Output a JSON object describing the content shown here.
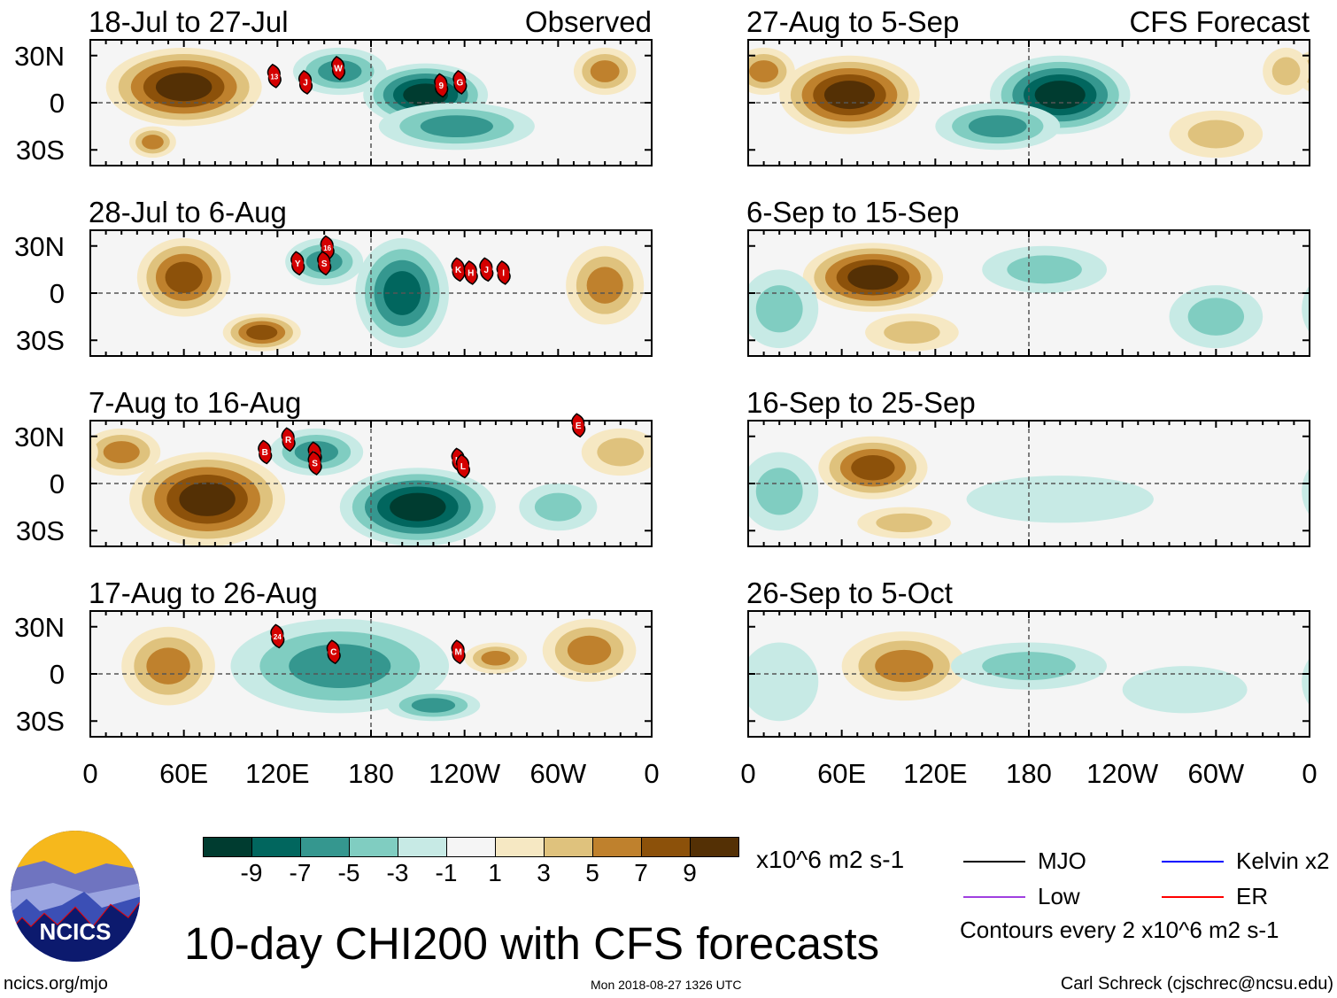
{
  "title": "10-day CHI200 with CFS forecasts",
  "source_url": "ncics.org/mjo",
  "timestamp": "Mon 2018-08-27 1326 UTC",
  "author": "Carl Schreck (cjschrec@ncsu.edu)",
  "logo_text": "NCICS",
  "units": "x10^6 m2 s-1",
  "contour_note": "Contours every 2 x10^6 m2 s-1",
  "column_labels": {
    "observed": "Observed",
    "forecast": "CFS Forecast"
  },
  "lat_labels": [
    "30N",
    "0",
    "30S"
  ],
  "lon_labels": [
    {
      "lon": 0,
      "label": "0"
    },
    {
      "lon": 60,
      "label": "60E"
    },
    {
      "lon": 120,
      "label": "120E"
    },
    {
      "lon": 180,
      "label": "180"
    },
    {
      "lon": 240,
      "label": "120W"
    },
    {
      "lon": 300,
      "label": "60W"
    },
    {
      "lon": 360,
      "label": "0"
    }
  ],
  "colorbar": {
    "colors": [
      "#003c30",
      "#01665e",
      "#35978f",
      "#80cdc1",
      "#c7eae5",
      "#f5f5f5",
      "#f6e8c3",
      "#dfc27d",
      "#bf812d",
      "#8c510a",
      "#543005"
    ],
    "ticks": [
      "-9",
      "-7",
      "-5",
      "-3",
      "-1",
      "1",
      "3",
      "5",
      "7",
      "9"
    ]
  },
  "legend": [
    {
      "label": "MJO",
      "color": "#000000"
    },
    {
      "label": "Kelvin x2",
      "color": "#0000ff"
    },
    {
      "label": "Low",
      "color": "#a040e0"
    },
    {
      "label": "ER",
      "color": "#ff0000"
    }
  ],
  "chart_data": [
    {
      "type": "heatmap",
      "column": "observed",
      "title": "18-Jul to 27-Jul",
      "anomalies": [
        [
          60,
          10,
          50,
          25,
          9
        ],
        [
          40,
          -25,
          15,
          10,
          5
        ],
        [
          330,
          20,
          20,
          15,
          5
        ],
        [
          160,
          20,
          30,
          15,
          -5
        ],
        [
          215,
          5,
          40,
          20,
          -9
        ],
        [
          235,
          -15,
          50,
          15,
          -5
        ]
      ],
      "storms": [
        {
          "id": "13",
          "lon": 118,
          "lat": 17
        },
        {
          "id": "J",
          "lon": 138,
          "lat": 13
        },
        {
          "id": "W",
          "lon": 159,
          "lat": 22
        },
        {
          "id": "9",
          "lon": 225,
          "lat": 11
        },
        {
          "id": "G",
          "lon": 237,
          "lat": 13
        }
      ]
    },
    {
      "type": "heatmap",
      "column": "observed",
      "title": "28-Jul to 6-Aug",
      "anomalies": [
        [
          60,
          10,
          30,
          25,
          7
        ],
        [
          110,
          -25,
          25,
          12,
          7
        ],
        [
          330,
          5,
          25,
          25,
          5
        ],
        [
          150,
          20,
          25,
          15,
          -5
        ],
        [
          200,
          0,
          30,
          35,
          -7
        ]
      ],
      "storms": [
        {
          "id": "Y",
          "lon": 133,
          "lat": 19
        },
        {
          "id": "16",
          "lon": 152,
          "lat": 29
        },
        {
          "id": "S",
          "lon": 150,
          "lat": 19
        },
        {
          "id": "K",
          "lon": 236,
          "lat": 15
        },
        {
          "id": "H",
          "lon": 244,
          "lat": 13
        },
        {
          "id": "J",
          "lon": 254,
          "lat": 15
        },
        {
          "id": "I",
          "lon": 265,
          "lat": 13
        }
      ]
    },
    {
      "type": "heatmap",
      "column": "observed",
      "title": "7-Aug to 16-Aug",
      "anomalies": [
        [
          75,
          -10,
          50,
          30,
          9
        ],
        [
          20,
          20,
          25,
          15,
          5
        ],
        [
          340,
          20,
          25,
          15,
          3
        ],
        [
          145,
          20,
          30,
          15,
          -5
        ],
        [
          210,
          -15,
          50,
          25,
          -9
        ],
        [
          300,
          -15,
          25,
          15,
          -3
        ]
      ],
      "storms": [
        {
          "id": "B",
          "lon": 112,
          "lat": 20
        },
        {
          "id": "R",
          "lon": 127,
          "lat": 28
        },
        {
          "id": "L",
          "lon": 144,
          "lat": 19
        },
        {
          "id": "S",
          "lon": 144,
          "lat": 13
        },
        {
          "id": "K",
          "lon": 236,
          "lat": 15
        },
        {
          "id": "L",
          "lon": 239,
          "lat": 11
        },
        {
          "id": "E",
          "lon": 313,
          "lat": 37
        }
      ]
    },
    {
      "type": "heatmap",
      "column": "observed",
      "title": "17-Aug to 26-Aug",
      "anomalies": [
        [
          50,
          5,
          30,
          25,
          5
        ],
        [
          320,
          15,
          30,
          20,
          5
        ],
        [
          260,
          10,
          20,
          10,
          5
        ],
        [
          160,
          5,
          70,
          30,
          -5
        ],
        [
          220,
          -20,
          30,
          10,
          -5
        ]
      ],
      "storms": [
        {
          "id": "24",
          "lon": 120,
          "lat": 24
        },
        {
          "id": "C",
          "lon": 156,
          "lat": 14
        },
        {
          "id": "M",
          "lon": 236,
          "lat": 14
        }
      ]
    },
    {
      "type": "heatmap",
      "column": "forecast",
      "title": "27-Aug to 5-Sep",
      "anomalies": [
        [
          65,
          5,
          45,
          25,
          9
        ],
        [
          10,
          20,
          20,
          15,
          5
        ],
        [
          345,
          20,
          15,
          15,
          3
        ],
        [
          300,
          -20,
          30,
          15,
          3
        ],
        [
          200,
          5,
          45,
          25,
          -9
        ],
        [
          160,
          -15,
          40,
          15,
          -5
        ]
      ],
      "storms": []
    },
    {
      "type": "heatmap",
      "column": "forecast",
      "title": "6-Sep to 15-Sep",
      "anomalies": [
        [
          80,
          10,
          45,
          22,
          9
        ],
        [
          105,
          -25,
          30,
          12,
          3
        ],
        [
          190,
          15,
          40,
          15,
          -3
        ],
        [
          20,
          -10,
          25,
          25,
          -3
        ],
        [
          300,
          -15,
          30,
          20,
          -3
        ]
      ],
      "storms": []
    },
    {
      "type": "heatmap",
      "column": "forecast",
      "title": "16-Sep to 25-Sep",
      "anomalies": [
        [
          80,
          10,
          35,
          20,
          7
        ],
        [
          20,
          -5,
          25,
          25,
          -3
        ],
        [
          200,
          -10,
          60,
          15,
          -1
        ],
        [
          100,
          -25,
          30,
          10,
          3
        ]
      ],
      "storms": []
    },
    {
      "type": "heatmap",
      "column": "forecast",
      "title": "26-Sep to 5-Oct",
      "anomalies": [
        [
          100,
          5,
          40,
          22,
          5
        ],
        [
          180,
          5,
          50,
          15,
          -3
        ],
        [
          20,
          -5,
          25,
          25,
          -1
        ],
        [
          280,
          -10,
          40,
          15,
          -1
        ]
      ],
      "storms": []
    }
  ]
}
